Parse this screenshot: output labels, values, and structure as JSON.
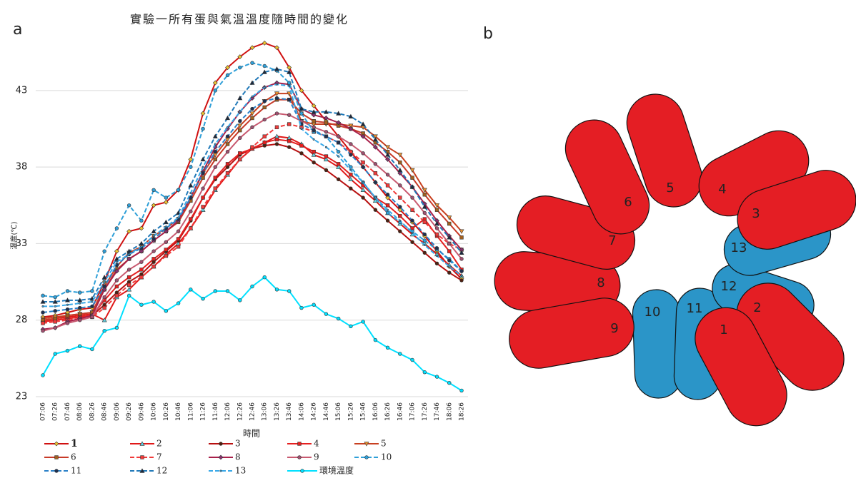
{
  "chart_data": {
    "type": "line",
    "title": "實驗一所有蛋與氣溫溫度隨時間的變化",
    "panel_label": "a",
    "x_label": "時間",
    "y_label": "溫度(℃)",
    "categories": [
      "07:06",
      "07:26",
      "07:46",
      "08:06",
      "08:26",
      "08:46",
      "09:06",
      "09:26",
      "09:46",
      "10:06",
      "10:26",
      "10:46",
      "11:06",
      "11:26",
      "11:46",
      "12:06",
      "12:26",
      "12:46",
      "13:06",
      "13:26",
      "13:46",
      "14:06",
      "14:26",
      "14:46",
      "15:06",
      "15:26",
      "15:46",
      "16:06",
      "16:26",
      "16:46",
      "17:06",
      "17:26",
      "17:46",
      "18:06",
      "18:26"
    ],
    "ylim": [
      23,
      47
    ],
    "yticks": [
      23,
      28,
      33,
      38,
      43
    ],
    "grid": true,
    "series": [
      {
        "name": "1",
        "color": "#d01010",
        "marker": "diamond",
        "marker_color": "#f0c030",
        "dash": false,
        "values": [
          28.2,
          28.3,
          28.5,
          28.7,
          28.8,
          30.5,
          32.5,
          33.8,
          34.0,
          35.5,
          35.7,
          36.5,
          38.5,
          41.5,
          43.5,
          44.5,
          45.2,
          45.8,
          46.1,
          45.8,
          44.5,
          43.0,
          42.0,
          41.0,
          40.0,
          39.0,
          38.0,
          37.0,
          36.0,
          35.2,
          34.4,
          33.5,
          32.5,
          31.5,
          30.7
        ]
      },
      {
        "name": "2",
        "color": "#e01818",
        "marker": "triangle",
        "marker_color": "#5fd0e0",
        "dash": false,
        "values": [
          28.0,
          28.1,
          28.2,
          28.3,
          28.4,
          28.0,
          29.5,
          30.0,
          30.8,
          31.5,
          32.3,
          33.0,
          34.0,
          35.2,
          36.5,
          37.5,
          38.5,
          39.2,
          39.6,
          40.0,
          39.9,
          39.5,
          38.8,
          38.5,
          38.0,
          37.2,
          36.5,
          35.8,
          35.0,
          34.3,
          33.6,
          33.0,
          32.3,
          31.6,
          30.9
        ]
      },
      {
        "name": "3",
        "color": "#b81010",
        "marker": "circle",
        "marker_color": "#502010",
        "dash": false,
        "values": [
          27.9,
          28.0,
          28.1,
          28.2,
          28.3,
          29.0,
          29.8,
          30.5,
          31.0,
          31.8,
          32.5,
          33.2,
          34.5,
          36.0,
          37.2,
          38.0,
          38.8,
          39.2,
          39.4,
          39.5,
          39.3,
          38.9,
          38.3,
          37.8,
          37.2,
          36.6,
          36.0,
          35.2,
          34.5,
          33.8,
          33.1,
          32.4,
          31.7,
          31.1,
          30.6
        ]
      },
      {
        "name": "4",
        "color": "#e52020",
        "marker": "square",
        "marker_color": "#e52020",
        "dash": false,
        "values": [
          27.9,
          28.0,
          28.1,
          28.2,
          28.3,
          29.3,
          30.2,
          30.8,
          31.3,
          32.0,
          32.6,
          33.3,
          34.6,
          36.0,
          37.3,
          38.2,
          38.9,
          39.2,
          39.6,
          39.8,
          39.7,
          39.4,
          39.0,
          38.7,
          38.2,
          37.5,
          36.8,
          36.0,
          35.5,
          34.8,
          34.0,
          34.6,
          33.5,
          32.5,
          31.3
        ]
      },
      {
        "name": "5",
        "color": "#c84020",
        "marker": "triangle-down",
        "marker_color": "#e89030",
        "dash": false,
        "values": [
          28.1,
          28.2,
          28.3,
          28.4,
          28.5,
          30.2,
          31.5,
          32.4,
          32.8,
          33.5,
          34.0,
          34.6,
          36.0,
          37.6,
          38.8,
          39.8,
          40.7,
          41.5,
          42.3,
          42.8,
          42.8,
          41.0,
          40.8,
          40.8,
          40.8,
          40.7,
          40.6,
          40.0,
          39.3,
          38.8,
          37.8,
          36.5,
          35.5,
          34.7,
          33.8
        ]
      },
      {
        "name": "6",
        "color": "#c83a28",
        "marker": "square",
        "marker_color": "#a06020",
        "dash": false,
        "values": [
          28.0,
          28.1,
          28.3,
          28.4,
          28.5,
          30.0,
          31.3,
          32.0,
          32.5,
          33.2,
          33.8,
          34.4,
          35.8,
          37.3,
          38.5,
          39.5,
          40.4,
          41.2,
          41.9,
          42.4,
          42.4,
          41.5,
          41.0,
          40.9,
          40.7,
          40.5,
          40.2,
          39.6,
          39.0,
          38.3,
          37.3,
          36.2,
          35.2,
          34.3,
          33.4
        ]
      },
      {
        "name": "7",
        "color": "#f03a3a",
        "marker": "square",
        "marker_color": "#f03a3a",
        "dash": true,
        "values": [
          27.8,
          27.9,
          28.0,
          28.1,
          28.2,
          28.8,
          29.6,
          30.3,
          30.8,
          31.5,
          32.2,
          32.8,
          34.0,
          35.4,
          36.6,
          37.6,
          38.5,
          39.3,
          40.0,
          40.6,
          40.8,
          40.6,
          40.3,
          40.0,
          39.6,
          39.0,
          38.3,
          37.6,
          36.8,
          36.0,
          35.2,
          34.4,
          33.6,
          33.0,
          32.6
        ]
      },
      {
        "name": "8",
        "color": "#a8204a",
        "marker": "diamond",
        "marker_color": "#8a3070",
        "dash": false,
        "values": [
          27.4,
          27.5,
          27.9,
          28.1,
          28.3,
          30.0,
          31.2,
          32.0,
          32.5,
          33.2,
          33.8,
          34.5,
          36.0,
          37.7,
          39.3,
          40.5,
          41.6,
          42.5,
          43.2,
          43.5,
          43.4,
          41.8,
          41.4,
          41.2,
          40.9,
          40.5,
          40.0,
          39.3,
          38.5,
          37.6,
          36.7,
          35.6,
          34.5,
          33.5,
          32.6
        ]
      },
      {
        "name": "9",
        "color": "#c85a70",
        "marker": "circle",
        "marker_color": "#a05070",
        "dash": false,
        "values": [
          27.3,
          27.5,
          27.8,
          28.0,
          28.2,
          29.5,
          30.6,
          31.3,
          31.8,
          32.5,
          33.1,
          33.8,
          35.1,
          36.6,
          38.0,
          39.0,
          39.9,
          40.6,
          41.1,
          41.5,
          41.4,
          41.0,
          40.6,
          40.3,
          40.0,
          39.5,
          38.9,
          38.2,
          37.5,
          36.8,
          36.0,
          35.0,
          34.0,
          33.0,
          32.0
        ]
      },
      {
        "name": "10",
        "color": "#2e9fd8",
        "marker": "circle",
        "marker_color": "#2e9fd8",
        "dash": true,
        "values": [
          29.6,
          29.5,
          29.9,
          29.8,
          29.9,
          32.5,
          34.0,
          35.5,
          34.5,
          36.5,
          36.0,
          36.5,
          38.0,
          40.5,
          43.0,
          44.0,
          44.5,
          44.8,
          44.6,
          44.3,
          43.5,
          41.5,
          40.3,
          40.0,
          39.0,
          38.0,
          37.0,
          36.0,
          35.0,
          34.4,
          33.8,
          33.2,
          32.6,
          32.0,
          31.2
        ]
      },
      {
        "name": "11",
        "color": "#2a80c8",
        "marker": "circle",
        "marker_color": "#203050",
        "dash": true,
        "values": [
          28.5,
          28.6,
          28.7,
          28.8,
          28.9,
          30.2,
          31.6,
          32.3,
          32.7,
          33.3,
          34.0,
          34.6,
          36.0,
          37.6,
          39.0,
          40.0,
          41.0,
          41.8,
          42.3,
          42.5,
          42.4,
          40.8,
          40.4,
          40.0,
          39.6,
          38.8,
          38.0,
          37.0,
          36.2,
          35.4,
          34.5,
          33.6,
          32.7,
          31.9,
          31.2
        ]
      },
      {
        "name": "12",
        "color": "#1f78b8",
        "marker": "triangle",
        "marker_color": "#1a2a40",
        "dash": true,
        "values": [
          29.2,
          29.2,
          29.3,
          29.3,
          29.4,
          30.8,
          32.0,
          32.5,
          33.0,
          33.8,
          34.4,
          35.0,
          36.8,
          38.5,
          40.0,
          41.2,
          42.5,
          43.5,
          44.2,
          44.4,
          44.2,
          41.8,
          41.6,
          41.6,
          41.5,
          41.3,
          40.8,
          39.8,
          38.8,
          37.8,
          36.7,
          35.4,
          34.3,
          33.4,
          32.4
        ]
      },
      {
        "name": "13",
        "color": "#38a8e8",
        "marker": "none",
        "marker_color": "#38a8e8",
        "dash": true,
        "values": [
          28.9,
          28.9,
          29.0,
          29.1,
          29.2,
          30.5,
          31.8,
          32.3,
          32.8,
          33.5,
          34.1,
          34.7,
          36.3,
          38.0,
          39.5,
          40.6,
          41.6,
          42.6,
          43.2,
          43.4,
          43.3,
          40.5,
          39.8,
          39.3,
          38.7,
          37.8,
          37.0,
          36.0,
          35.2,
          34.5,
          33.7,
          32.9,
          32.2,
          31.5,
          30.9
        ]
      },
      {
        "name": "環境溫度",
        "color": "#00e0ff",
        "marker": "circle",
        "marker_color": "#00e0ff",
        "dash": false,
        "values": [
          24.4,
          25.8,
          26.0,
          26.3,
          26.1,
          27.3,
          27.5,
          29.6,
          29.0,
          29.2,
          28.6,
          29.1,
          30.0,
          29.4,
          29.9,
          29.9,
          29.3,
          30.2,
          30.8,
          30.0,
          29.9,
          28.8,
          29.0,
          28.4,
          28.1,
          27.6,
          27.9,
          26.7,
          26.2,
          25.8,
          25.4,
          24.6,
          24.3,
          23.9,
          23.4
        ]
      }
    ]
  },
  "diagram": {
    "panel_label": "b",
    "eggs": [
      {
        "label": "10",
        "color": "#2b95c8"
      },
      {
        "label": "11",
        "color": "#2b95c8"
      },
      {
        "label": "12",
        "color": "#2b95c8"
      },
      {
        "label": "13",
        "color": "#2b95c8"
      },
      {
        "label": "8",
        "color": "#e41e24"
      },
      {
        "label": "7",
        "color": "#e41e24"
      },
      {
        "label": "9",
        "color": "#e41e24"
      },
      {
        "label": "6",
        "color": "#e41e24"
      },
      {
        "label": "5",
        "color": "#e41e24"
      },
      {
        "label": "4",
        "color": "#e41e24"
      },
      {
        "label": "3",
        "color": "#e41e24"
      },
      {
        "label": "2",
        "color": "#e41e24"
      },
      {
        "label": "1",
        "color": "#e41e24"
      }
    ]
  }
}
